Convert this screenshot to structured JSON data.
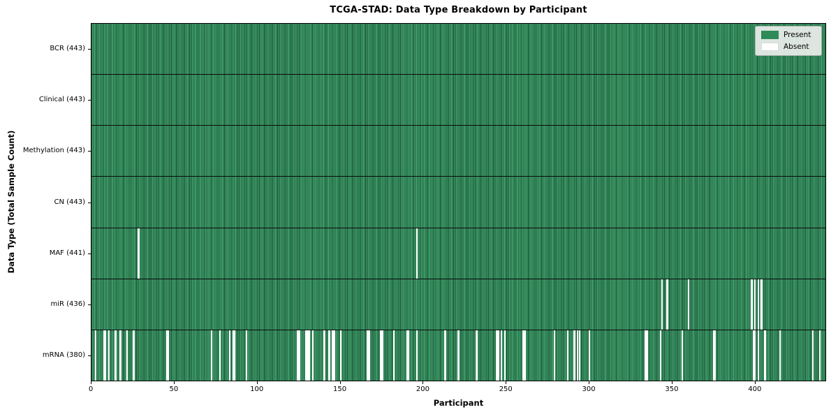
{
  "figure": {
    "title": "TCGA-STAD: Data Type Breakdown by Participant",
    "xlabel": "Participant",
    "ylabel": "Data Type (Total Sample Count)"
  },
  "legend": {
    "items": [
      {
        "label": "Present",
        "color": "#2e8b57",
        "border": "#2e8b57"
      },
      {
        "label": "Absent",
        "color": "#ffffff",
        "border": "#d9d9d9"
      }
    ]
  },
  "chart_data": {
    "type": "heatmap",
    "title": "TCGA-STAD: Data Type Breakdown by Participant",
    "xlabel": "Participant",
    "ylabel": "Data Type (Total Sample Count)",
    "x_range": [
      0,
      443
    ],
    "x_ticks": [
      0,
      50,
      100,
      150,
      200,
      250,
      300,
      350,
      400
    ],
    "participants_total": 443,
    "legend_position": "upper right",
    "colors": {
      "present_fill": "#2e8b57",
      "present_fill_light": "#4aa577",
      "bar_edge": "#1c5033",
      "absent": "#ffffff",
      "row_divider": "#0a0a0a"
    },
    "rows": [
      {
        "name": "BCR",
        "display": "BCR (443)",
        "present_count": 443,
        "absent_participants": []
      },
      {
        "name": "Clinical",
        "display": "Clinical (443)",
        "present_count": 443,
        "absent_participants": []
      },
      {
        "name": "Methylation",
        "display": "Methylation (443)",
        "present_count": 443,
        "absent_participants": []
      },
      {
        "name": "CN",
        "display": "CN (443)",
        "present_count": 443,
        "absent_participants": []
      },
      {
        "name": "MAF",
        "display": "MAF (441)",
        "present_count": 441,
        "absent_participants": [
          28,
          196
        ]
      },
      {
        "name": "miR",
        "display": "miR (436)",
        "present_count": 436,
        "absent_participants": [
          344,
          347,
          360,
          398,
          400,
          402,
          404
        ]
      },
      {
        "name": "mRNA",
        "display": "mRNA (380)",
        "present_count": 380,
        "absent_participants": [
          2,
          7,
          8,
          10,
          14,
          17,
          21,
          25,
          45,
          46,
          72,
          77,
          83,
          85,
          86,
          93,
          124,
          125,
          129,
          130,
          131,
          133,
          140,
          143,
          145,
          146,
          150,
          166,
          167,
          174,
          175,
          182,
          190,
          191,
          196,
          213,
          221,
          232,
          244,
          245,
          247,
          249,
          260,
          261,
          279,
          287,
          291,
          293,
          294,
          300,
          334,
          335,
          343,
          356,
          375,
          376,
          399,
          400,
          402,
          406,
          415,
          435,
          439
        ]
      }
    ]
  }
}
